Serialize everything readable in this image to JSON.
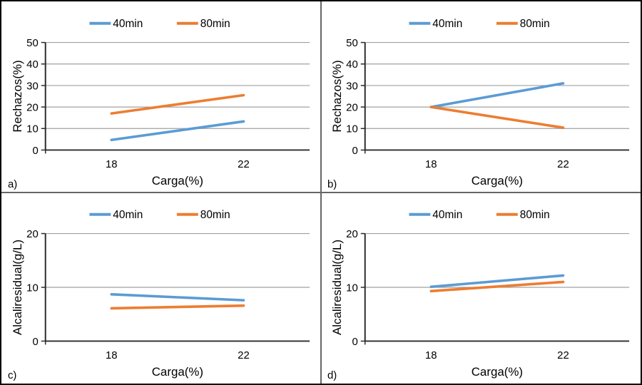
{
  "figure": {
    "background": "#ffffff",
    "border_color": "#000000",
    "divider_color": "#666666"
  },
  "colors": {
    "series_blue": "#5B9BD5",
    "series_orange": "#ED7D31",
    "gridline": "#A0A0A0",
    "axis": "#2B2B2B",
    "text": "#000000"
  },
  "chart_data": [
    {
      "type": "line",
      "panel_label": "a)",
      "xlabel": "Carga(%)",
      "ylabel": "Rechazos(%)",
      "categories": [
        "18",
        "22"
      ],
      "series": [
        {
          "name": "40min",
          "color": "#5B9BD5",
          "values": [
            4.7,
            13.3
          ]
        },
        {
          "name": "80min",
          "color": "#ED7D31",
          "values": [
            17.0,
            25.5
          ]
        }
      ],
      "ylim": [
        0,
        50
      ],
      "yticks": [
        0,
        10,
        20,
        30,
        40,
        50
      ],
      "grid": true,
      "legend_position": "top"
    },
    {
      "type": "line",
      "panel_label": "b)",
      "xlabel": "Carga(%)",
      "ylabel": "Rechazos(%)",
      "categories": [
        "18",
        "22"
      ],
      "series": [
        {
          "name": "40min",
          "color": "#5B9BD5",
          "values": [
            20.0,
            31.0
          ]
        },
        {
          "name": "80min",
          "color": "#ED7D31",
          "values": [
            20.0,
            10.4
          ]
        }
      ],
      "ylim": [
        0,
        50
      ],
      "yticks": [
        0,
        10,
        20,
        30,
        40,
        50
      ],
      "grid": true,
      "legend_position": "top"
    },
    {
      "type": "line",
      "panel_label": "c)",
      "xlabel": "Carga(%)",
      "ylabel": "Alcaliresidual(g/L)",
      "categories": [
        "18",
        "22"
      ],
      "series": [
        {
          "name": "40min",
          "color": "#5B9BD5",
          "values": [
            8.7,
            7.6
          ]
        },
        {
          "name": "80min",
          "color": "#ED7D31",
          "values": [
            6.1,
            6.6
          ]
        }
      ],
      "ylim": [
        0,
        20
      ],
      "yticks": [
        0,
        10,
        20
      ],
      "grid": true,
      "legend_position": "top"
    },
    {
      "type": "line",
      "panel_label": "d)",
      "xlabel": "Carga(%)",
      "ylabel": "Alcaliresidual(g/L)",
      "categories": [
        "18",
        "22"
      ],
      "series": [
        {
          "name": "40min",
          "color": "#5B9BD5",
          "values": [
            10.1,
            12.2
          ]
        },
        {
          "name": "80min",
          "color": "#ED7D31",
          "values": [
            9.3,
            11.0
          ]
        }
      ],
      "ylim": [
        0,
        20
      ],
      "yticks": [
        0,
        10,
        20
      ],
      "grid": true,
      "legend_position": "top"
    }
  ]
}
